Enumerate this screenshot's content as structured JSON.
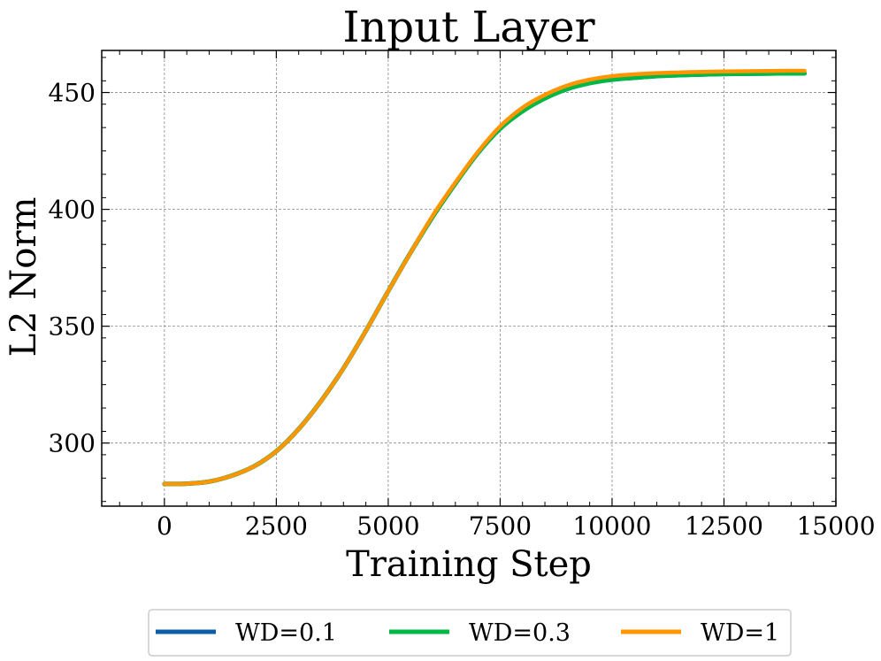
{
  "chart_data": {
    "type": "line",
    "title": "Input Layer",
    "xlabel": "Training Step",
    "ylabel": "L2 Norm",
    "xlim": [
      -1400,
      15000
    ],
    "ylim": [
      273,
      468
    ],
    "xticks": [
      0,
      2500,
      5000,
      7500,
      10000,
      12500,
      15000
    ],
    "xtick_labels": [
      "0",
      "2500",
      "5000",
      "7500",
      "10000",
      "12500",
      "15000"
    ],
    "yticks": [
      300,
      350,
      400,
      450
    ],
    "ytick_labels": [
      "300",
      "350",
      "400",
      "450"
    ],
    "grid": true,
    "legend_position": "bottom-center, below plot",
    "series": [
      {
        "name": "WD=0.1",
        "color": "#0C5DA5",
        "x": [
          0,
          500,
          1000,
          1500,
          2000,
          2500,
          3000,
          3500,
          4000,
          4500,
          5000,
          5500,
          6000,
          6500,
          7000,
          7500,
          8000,
          8500,
          9000,
          9500,
          10000,
          10500,
          11000,
          11500,
          12000,
          12500,
          13000,
          13500,
          14000,
          14300
        ],
        "y": [
          282.5,
          282.6,
          283.5,
          286,
          290,
          296.5,
          306,
          318,
          332,
          348,
          365,
          381.5,
          397,
          411,
          424,
          434.5,
          442,
          447.5,
          451.5,
          454,
          455.5,
          456.3,
          457,
          457.4,
          457.7,
          457.9,
          458,
          458.1,
          458.2,
          458.2
        ]
      },
      {
        "name": "WD=0.3",
        "color": "#00B945",
        "x": [
          0,
          500,
          1000,
          1500,
          2000,
          2500,
          3000,
          3500,
          4000,
          4500,
          5000,
          5500,
          6000,
          6500,
          7000,
          7500,
          8000,
          8500,
          9000,
          9500,
          10000,
          10500,
          11000,
          11500,
          12000,
          12500,
          13000,
          13500,
          14000,
          14300
        ],
        "y": [
          282.5,
          282.6,
          283.5,
          286,
          290,
          296.5,
          306,
          318,
          332,
          348,
          365,
          381.5,
          397,
          411,
          424,
          434.5,
          442,
          447.5,
          451.5,
          454,
          455.5,
          456.3,
          457,
          457.4,
          457.7,
          457.9,
          458,
          458.1,
          458.2,
          458.2
        ]
      },
      {
        "name": "WD=1",
        "color": "#FF9500",
        "x": [
          0,
          500,
          1000,
          1500,
          2000,
          2500,
          3000,
          3500,
          4000,
          4500,
          5000,
          5500,
          6000,
          6500,
          7000,
          7500,
          8000,
          8500,
          9000,
          9500,
          10000,
          10500,
          11000,
          11500,
          12000,
          12500,
          13000,
          13500,
          14000,
          14300
        ],
        "y": [
          282.5,
          282.6,
          283.5,
          286,
          290,
          296.5,
          306,
          318,
          332,
          348,
          365,
          381.5,
          397.5,
          411.5,
          424.5,
          435.5,
          443.5,
          449,
          453,
          455.5,
          457,
          457.8,
          458.3,
          458.6,
          458.8,
          459,
          459.1,
          459.2,
          459.3,
          459.3
        ]
      }
    ]
  }
}
